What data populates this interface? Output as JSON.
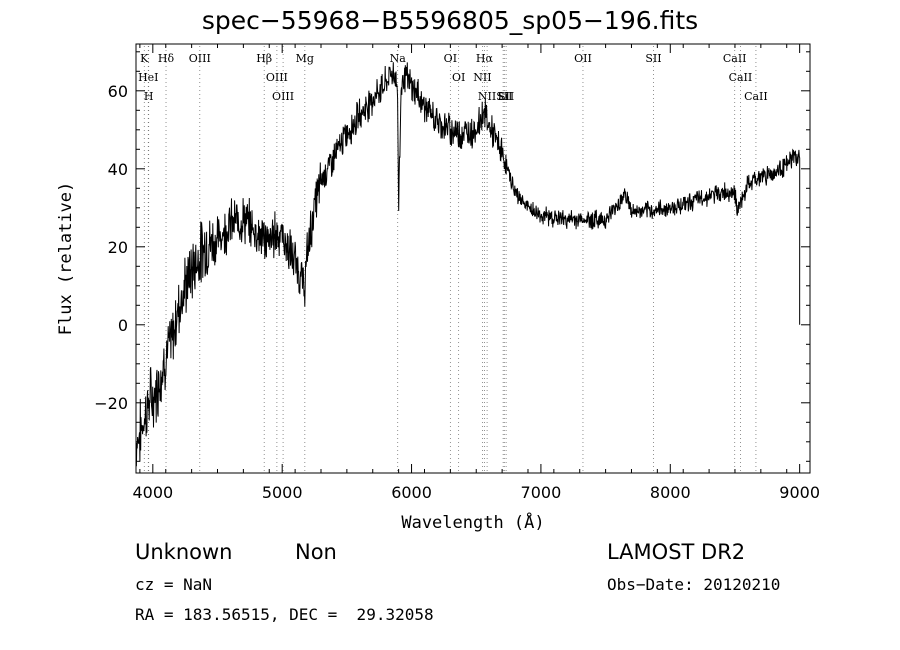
{
  "chart_data": {
    "type": "line",
    "title": "spec−55968−B5596805_sp05−196.fits",
    "xlabel": "Wavelength (Å)",
    "ylabel": "Flux (relative)",
    "xlim": [
      3870,
      9080
    ],
    "ylim": [
      -38,
      72
    ],
    "x_ticks": [
      4000,
      5000,
      6000,
      7000,
      8000,
      9000
    ],
    "y_ticks": [
      -20,
      0,
      20,
      40,
      60
    ],
    "x_tick_labels": [
      "4000",
      "5000",
      "6000",
      "7000",
      "8000",
      "9000"
    ],
    "y_tick_labels": [
      "−20",
      "0",
      "20",
      "40",
      "60"
    ],
    "grid": false,
    "series": [
      {
        "x": [
          3870,
          3900,
          3950,
          3990,
          4000,
          4050,
          4100,
          4150,
          4200,
          4300,
          4400,
          4500,
          4600,
          4700,
          4800,
          4900,
          4950,
          5000,
          5050,
          5100,
          5150,
          5170,
          5200,
          5250,
          5300,
          5400,
          5500,
          5600,
          5700,
          5800,
          5850,
          5890,
          5900,
          5920,
          5950,
          6000,
          6050,
          6100,
          6200,
          6300,
          6400,
          6500,
          6560,
          6600,
          6700,
          6800,
          6900,
          7000,
          7200,
          7400,
          7500,
          7600,
          7650,
          7700,
          7800,
          8000,
          8200,
          8400,
          8500,
          8520,
          8600,
          8700,
          8800,
          8900,
          8950,
          9000,
          9005
        ],
        "y": [
          -30,
          -28,
          -22,
          -18,
          -20,
          -14,
          -8,
          -4,
          5,
          14,
          20,
          22,
          26,
          27,
          24,
          21,
          24,
          23,
          19,
          16,
          12,
          9,
          20,
          30,
          37,
          43,
          49,
          54,
          58,
          62,
          65,
          62,
          30,
          62,
          64,
          61,
          59,
          56,
          52,
          50,
          49,
          50,
          55,
          51,
          44,
          34,
          30,
          28,
          27,
          27,
          27,
          31,
          34,
          29,
          29,
          30,
          32,
          34,
          34,
          29,
          36,
          38,
          39,
          41,
          43,
          43,
          0
        ]
      }
    ],
    "line_markers": [
      {
        "label": "K",
        "x": 3934
      },
      {
        "label": "HeI",
        "x": 3965
      },
      {
        "label": "H",
        "x": 3968
      },
      {
        "label": "Hδ",
        "x": 4102
      },
      {
        "label": "OIII",
        "x": 4363
      },
      {
        "label": "Hβ",
        "x": 4861
      },
      {
        "label": "OIII",
        "x": 4959
      },
      {
        "label": "OIII",
        "x": 5007
      },
      {
        "label": "Mg",
        "x": 5175
      },
      {
        "label": "Na",
        "x": 5893
      },
      {
        "label": "OI",
        "x": 6300
      },
      {
        "label": "OI",
        "x": 6364
      },
      {
        "label": "Hα",
        "x": 6563
      },
      {
        "label": "NII",
        "x": 6548
      },
      {
        "label": "NII",
        "x": 6584
      },
      {
        "label": "SII",
        "x": 6717
      },
      {
        "label": "SII",
        "x": 6731
      },
      {
        "label": "Li",
        "x": 6708
      },
      {
        "label": "OII",
        "x": 7325
      },
      {
        "label": "SII",
        "x": 7870
      },
      {
        "label": "CaII",
        "x": 8498
      },
      {
        "label": "CaII",
        "x": 8542
      },
      {
        "label": "CaII",
        "x": 8662
      }
    ]
  },
  "footer": {
    "class_label": "Unknown",
    "subclass_label": "Non",
    "survey": "LAMOST DR2",
    "cz": "cz = NaN",
    "obs_date": "Obs−Date: 20120210",
    "coords": "RA = 183.56515, DEC =  29.32058"
  }
}
